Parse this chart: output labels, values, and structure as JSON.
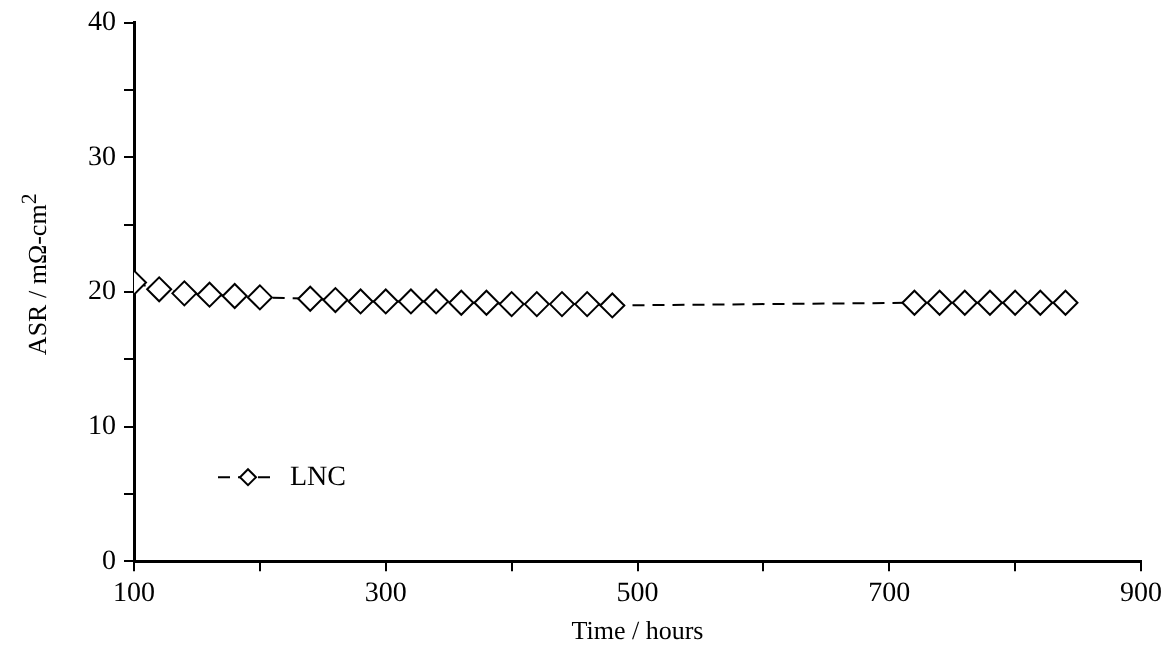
{
  "chart_data": {
    "type": "line",
    "xlabel": "Time / hours",
    "ylabel": "ASR  / mΩ-cm$^{2}$",
    "series": [
      {
        "name": "LNC",
        "color": "#000000",
        "x": [
          100,
          120,
          140,
          160,
          180,
          200,
          240,
          260,
          280,
          300,
          320,
          340,
          360,
          380,
          400,
          420,
          440,
          460,
          480,
          720,
          740,
          760,
          780,
          800,
          820,
          840
        ],
        "values": [
          20.7,
          20.2,
          19.9,
          19.8,
          19.7,
          19.6,
          19.5,
          19.4,
          19.3,
          19.3,
          19.3,
          19.3,
          19.2,
          19.2,
          19.1,
          19.1,
          19.1,
          19.1,
          19.0,
          19.2,
          19.2,
          19.2,
          19.2,
          19.2,
          19.2,
          19.2
        ]
      }
    ],
    "xlim": [
      100,
      900
    ],
    "xticks": [
      100,
      {
        "value": 200,
        "label": null
      },
      300,
      {
        "value": 400,
        "label": null
      },
      500,
      {
        "value": 600,
        "label": null
      },
      700,
      {
        "value": 800,
        "label": null
      },
      900
    ],
    "ylim": [
      0,
      40
    ],
    "yticks": [
      0,
      {
        "value": 5,
        "label": null
      },
      10,
      {
        "value": 15,
        "label": null
      },
      20,
      {
        "value": 25,
        "label": null
      },
      30,
      {
        "value": 35,
        "label": null
      },
      40
    ],
    "grid": false,
    "legend": "bottom left",
    "marker": "diamond",
    "line_style": "dashed"
  }
}
